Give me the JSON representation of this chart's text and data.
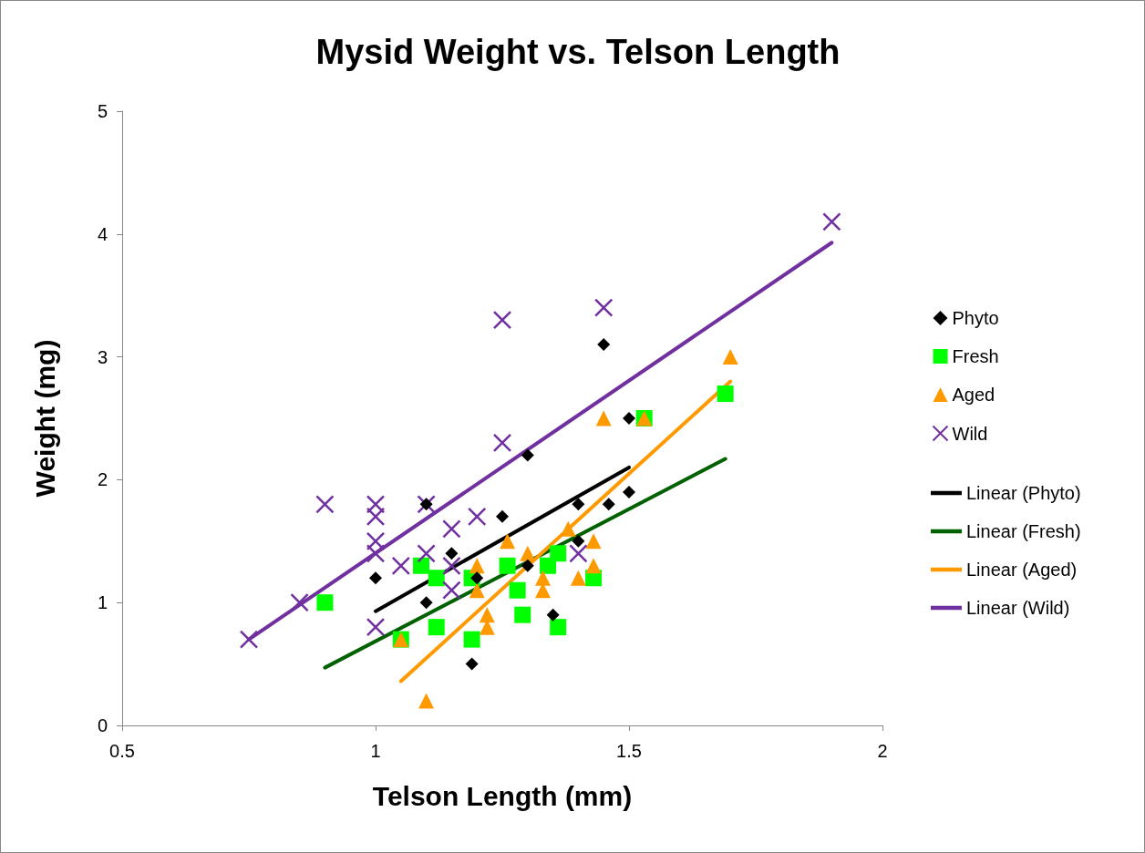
{
  "chart_data": {
    "type": "scatter",
    "title": "Mysid Weight vs. Telson Length",
    "xlabel": "Telson Length (mm)",
    "ylabel": "Weight (mg)",
    "xlim": [
      0.5,
      2
    ],
    "xticks": [
      0.5,
      1,
      1.5,
      2
    ],
    "ylim": [
      0,
      5
    ],
    "yticks": [
      0,
      1,
      2,
      3,
      4,
      5
    ],
    "grid": false,
    "legend": "right",
    "series": [
      {
        "name": "Phyto",
        "color": "#000000",
        "marker": "diamond",
        "x": [
          1.0,
          1.1,
          1.1,
          1.15,
          1.25,
          1.3,
          1.2,
          1.4,
          1.46,
          1.5,
          1.5,
          1.45,
          1.4,
          1.3,
          1.35,
          1.19
        ],
        "values": [
          1.2,
          1.8,
          1.0,
          1.4,
          1.7,
          2.2,
          1.2,
          1.8,
          1.8,
          1.9,
          2.5,
          3.1,
          1.5,
          1.3,
          0.9,
          0.5
        ]
      },
      {
        "name": "Fresh",
        "color": "#00ff00",
        "marker": "square",
        "x": [
          0.9,
          1.09,
          1.12,
          1.12,
          1.05,
          1.19,
          1.19,
          1.26,
          1.28,
          1.29,
          1.34,
          1.36,
          1.36,
          1.43,
          1.53,
          1.69
        ],
        "values": [
          1.0,
          1.3,
          1.2,
          0.8,
          0.7,
          1.2,
          0.7,
          1.3,
          1.1,
          0.9,
          1.3,
          1.4,
          0.8,
          1.2,
          2.5,
          2.7
        ]
      },
      {
        "name": "Aged",
        "color": "#ff9900",
        "marker": "triangle",
        "x": [
          1.05,
          1.1,
          1.2,
          1.2,
          1.22,
          1.22,
          1.26,
          1.3,
          1.33,
          1.33,
          1.38,
          1.43,
          1.4,
          1.43,
          1.45,
          1.53,
          1.7
        ],
        "values": [
          0.7,
          0.2,
          1.3,
          1.1,
          0.9,
          0.8,
          1.5,
          1.4,
          1.2,
          1.1,
          1.6,
          1.5,
          1.2,
          1.3,
          2.5,
          2.5,
          3.0
        ]
      },
      {
        "name": "Wild",
        "color": "#7030a0",
        "marker": "cross",
        "x": [
          0.75,
          0.85,
          0.9,
          1.0,
          1.0,
          1.0,
          1.0,
          1.0,
          1.05,
          1.1,
          1.1,
          1.15,
          1.15,
          1.15,
          1.2,
          1.25,
          1.25,
          1.45,
          1.4,
          1.9
        ],
        "values": [
          0.7,
          1.0,
          1.8,
          1.8,
          1.7,
          1.5,
          1.4,
          0.8,
          1.3,
          1.8,
          1.4,
          1.6,
          1.3,
          1.1,
          1.7,
          2.3,
          3.3,
          3.4,
          1.4,
          4.1
        ]
      },
      {
        "name": "Linear (Phyto)",
        "type": "line",
        "color": "#000000",
        "marker": "none",
        "x": [
          1.0,
          1.5
        ],
        "values": [
          0.93,
          2.1
        ]
      },
      {
        "name": "Linear (Fresh)",
        "type": "line",
        "color": "#006100",
        "marker": "none",
        "x": [
          0.9,
          1.69
        ],
        "values": [
          0.47,
          2.17
        ]
      },
      {
        "name": "Linear (Aged)",
        "type": "line",
        "color": "#ff9900",
        "marker": "none",
        "x": [
          1.05,
          1.7
        ],
        "values": [
          0.36,
          2.8
        ]
      },
      {
        "name": "Linear (Wild)",
        "type": "line",
        "color": "#7030a0",
        "marker": "none",
        "x": [
          0.75,
          1.9
        ],
        "values": [
          0.7,
          3.93
        ]
      }
    ]
  }
}
